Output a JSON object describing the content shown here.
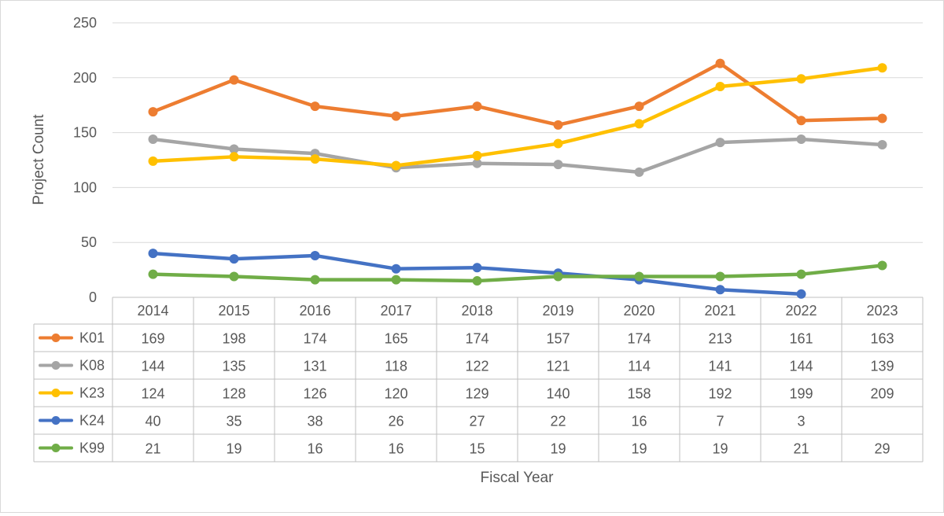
{
  "chart_data": {
    "type": "line",
    "title": "",
    "xlabel": "Fiscal Year",
    "ylabel": "Project Count",
    "ylim": [
      0,
      250
    ],
    "yticks": [
      0,
      50,
      100,
      150,
      200,
      250
    ],
    "grid": true,
    "legend": "data-table-left",
    "categories": [
      "2014",
      "2015",
      "2016",
      "2017",
      "2018",
      "2019",
      "2020",
      "2021",
      "2022",
      "2023"
    ],
    "series": [
      {
        "name": "K01",
        "color": "#ED7D31",
        "values": [
          169,
          198,
          174,
          165,
          174,
          157,
          174,
          213,
          161,
          163
        ]
      },
      {
        "name": "K08",
        "color": "#A5A5A5",
        "values": [
          144,
          135,
          131,
          118,
          122,
          121,
          114,
          141,
          144,
          139
        ]
      },
      {
        "name": "K23",
        "color": "#FFC000",
        "values": [
          124,
          128,
          126,
          120,
          129,
          140,
          158,
          192,
          199,
          209
        ]
      },
      {
        "name": "K24",
        "color": "#4472C4",
        "values": [
          40,
          35,
          38,
          26,
          27,
          22,
          16,
          7,
          3,
          null
        ]
      },
      {
        "name": "K99",
        "color": "#70AD47",
        "values": [
          21,
          19,
          16,
          16,
          15,
          19,
          19,
          19,
          21,
          29
        ]
      }
    ]
  }
}
